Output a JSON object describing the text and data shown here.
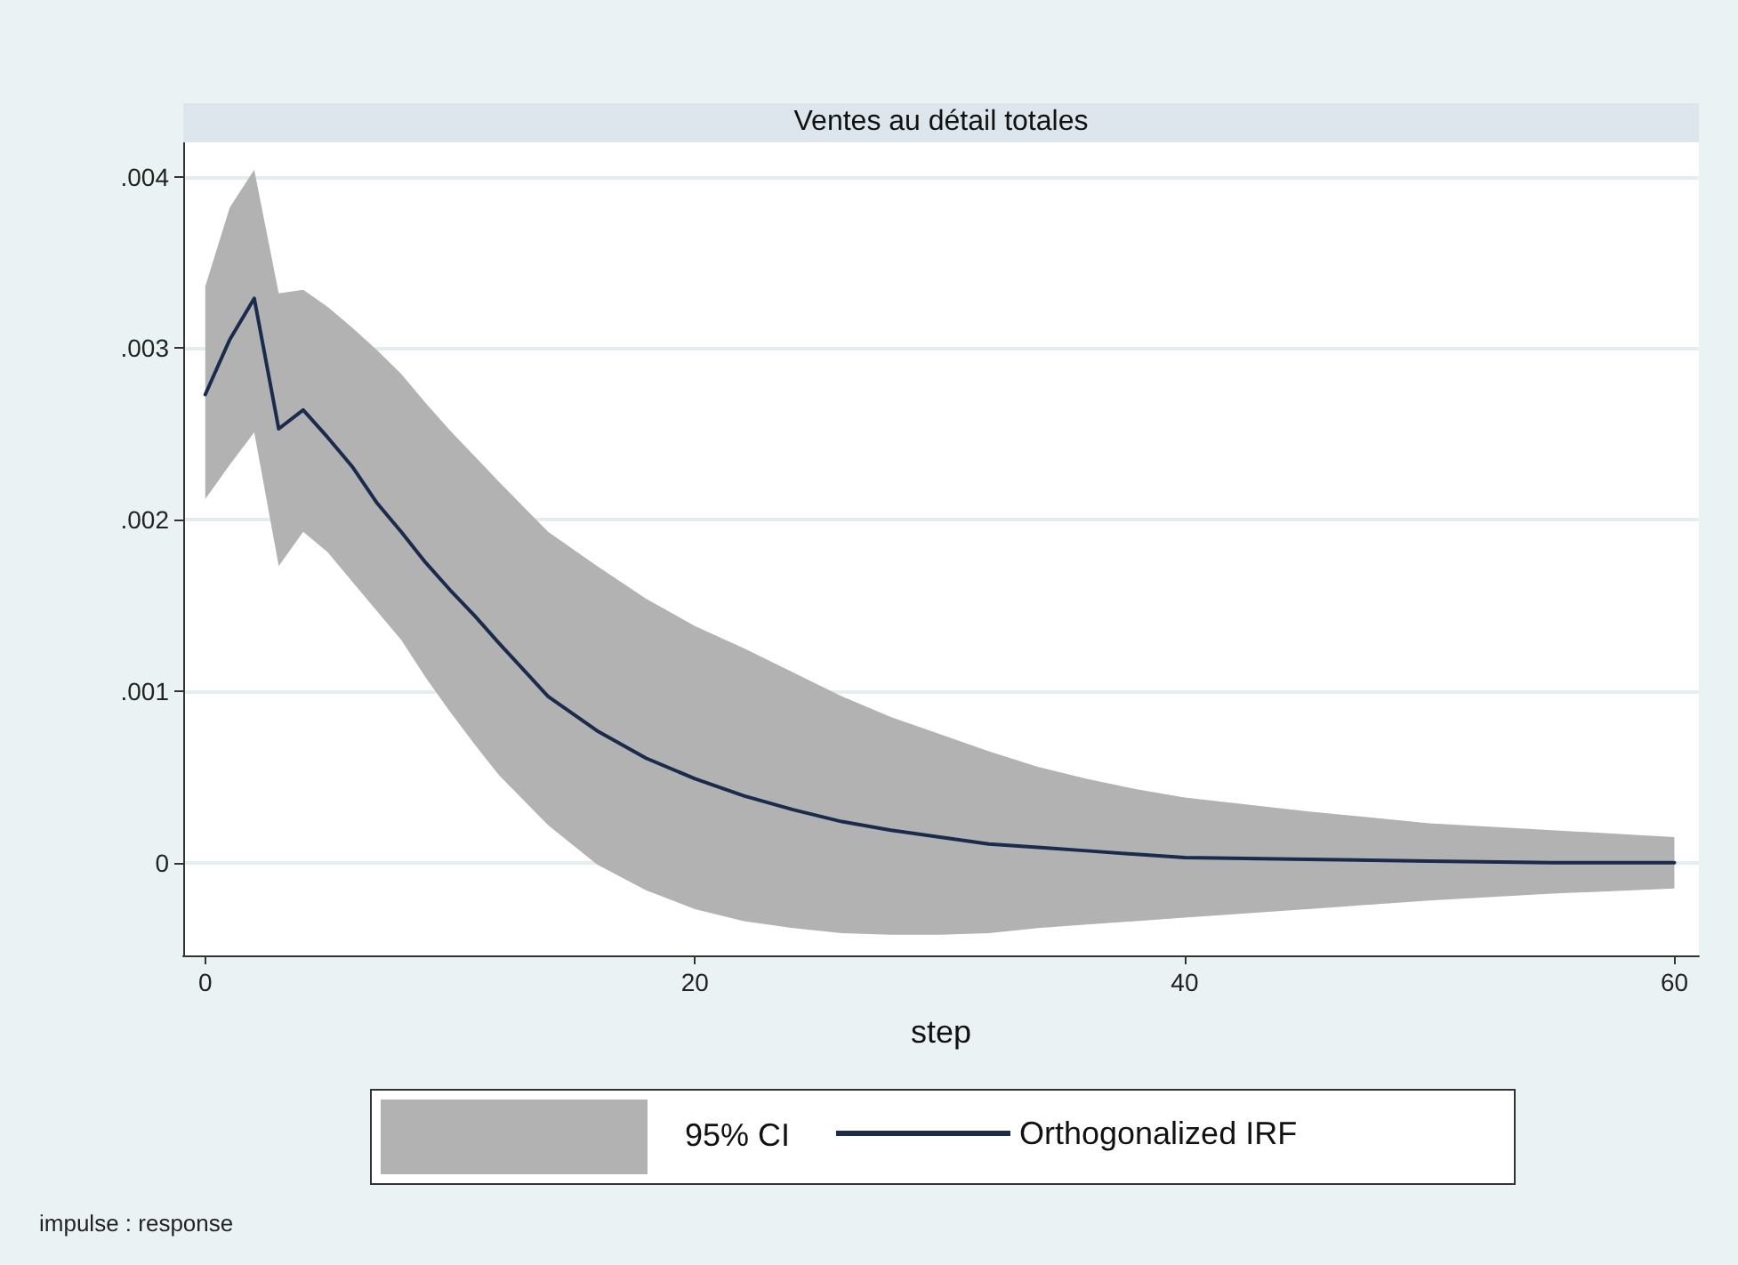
{
  "chart_data": {
    "type": "line",
    "title": "Ventes au détail totales",
    "xlabel": "step",
    "annotations": [
      "95% CI",
      "impulse : response"
    ],
    "xlim": [
      -0.9,
      61
    ],
    "xticks": [
      0,
      20,
      40,
      60
    ],
    "ylim": [
      -0.00054,
      0.0042
    ],
    "yticks": [
      {
        "value": 0,
        "label": "0"
      },
      {
        "value": 0.001,
        "label": ".001"
      },
      {
        "value": 0.002,
        "label": ".002"
      },
      {
        "value": 0.003,
        "label": ".003"
      },
      {
        "value": 0.004,
        "label": ".004"
      }
    ],
    "grid": "y",
    "legend": "bottom",
    "marker": "none",
    "line_style": "solid",
    "series": [
      {
        "name": "Orthogonalized IRF",
        "color": "#1a2b4c",
        "x": [
          0,
          1,
          2,
          3,
          4,
          5,
          6,
          7,
          8,
          9,
          10,
          11,
          12,
          14,
          16,
          18,
          20,
          22,
          24,
          26,
          28,
          30,
          32,
          34,
          36,
          38,
          40,
          45,
          50,
          55,
          60
        ],
        "values": [
          0.00273,
          0.00305,
          0.00329,
          0.00253,
          0.00264,
          0.00248,
          0.00231,
          0.0021,
          0.00193,
          0.00175,
          0.00159,
          0.00144,
          0.00128,
          0.00097,
          0.00077,
          0.00061,
          0.00049,
          0.00039,
          0.00031,
          0.00024,
          0.00019,
          0.00015,
          0.00011,
          9e-05,
          7e-05,
          5e-05,
          3e-05,
          2e-05,
          1e-05,
          0,
          0
        ],
        "upper": [
          0.00336,
          0.00382,
          0.00404,
          0.00332,
          0.00334,
          0.00324,
          0.00312,
          0.00299,
          0.00285,
          0.00268,
          0.00252,
          0.00237,
          0.00222,
          0.00193,
          0.00173,
          0.00154,
          0.00138,
          0.00125,
          0.00111,
          0.00097,
          0.00085,
          0.00075,
          0.00065,
          0.00056,
          0.00049,
          0.00043,
          0.00038,
          0.0003,
          0.00023,
          0.00019,
          0.00015
        ],
        "lower": [
          0.00212,
          0.00232,
          0.00251,
          0.00173,
          0.00193,
          0.00181,
          0.00164,
          0.00147,
          0.0013,
          0.00108,
          0.00088,
          0.00069,
          0.00051,
          0.00022,
          -1e-05,
          -0.00016,
          -0.00027,
          -0.00034,
          -0.00038,
          -0.00041,
          -0.00042,
          -0.00042,
          -0.00041,
          -0.00038,
          -0.00036,
          -0.00034,
          -0.00032,
          -0.00027,
          -0.00022,
          -0.00018,
          -0.00015
        ]
      }
    ]
  }
}
